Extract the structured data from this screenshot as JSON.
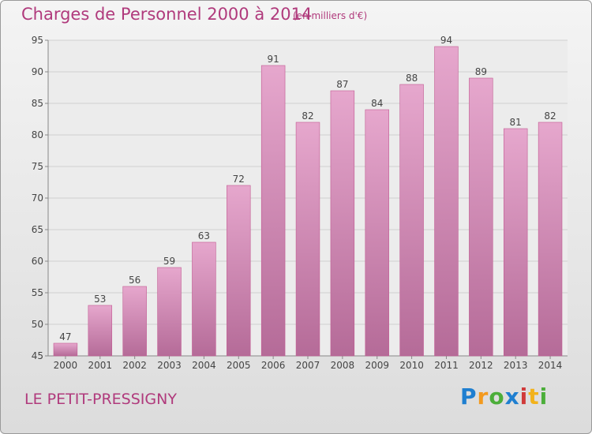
{
  "header": {
    "title": "Charges de Personnel 2000 à 2014",
    "subtitle": "(en milliers d'€)"
  },
  "footer": {
    "town": "LE PETIT-PRESSIGNY",
    "logo": "Proxiti"
  },
  "colors": {
    "accent": "#b03a7c",
    "bar_top": "#e6a7cd",
    "bar_bottom": "#b56b98",
    "bar_edge": "#c25a92"
  },
  "chart_data": {
    "type": "bar",
    "title": "Charges de Personnel 2000 à 2014",
    "subtitle": "(en milliers d'€)",
    "categories": [
      "2000",
      "2001",
      "2002",
      "2003",
      "2004",
      "2005",
      "2006",
      "2007",
      "2008",
      "2009",
      "2010",
      "2011",
      "2012",
      "2013",
      "2014"
    ],
    "values": [
      47,
      53,
      56,
      59,
      63,
      72,
      91,
      82,
      87,
      84,
      88,
      94,
      89,
      81,
      82
    ],
    "ylim": [
      45,
      95
    ],
    "yticks": [
      45,
      50,
      55,
      60,
      65,
      70,
      75,
      80,
      85,
      90,
      95
    ],
    "grid": true,
    "legend": "none"
  }
}
